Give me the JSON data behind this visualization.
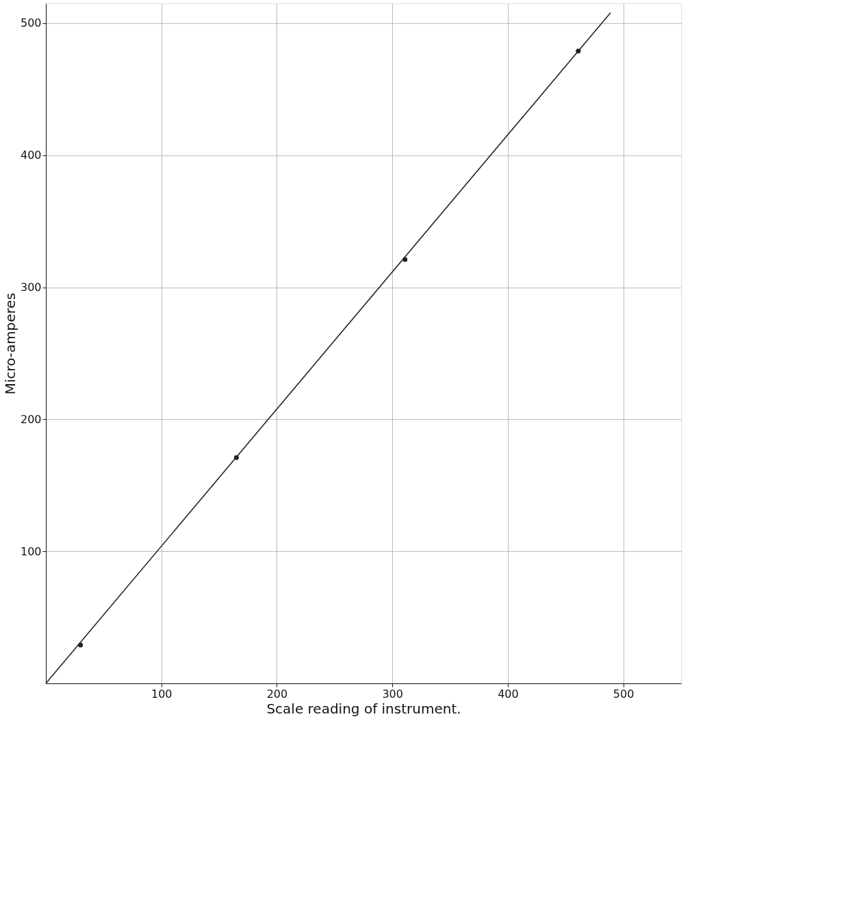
{
  "chart_data": {
    "type": "scatter",
    "xlabel": "Scale reading of instrument.",
    "ylabel": "Micro-amperes",
    "series": [
      {
        "color": "#222222",
        "x": [
          30,
          165,
          311,
          461
        ],
        "values": [
          29,
          171,
          321,
          479
        ],
        "marker": "circle"
      },
      {
        "type": "line",
        "color": "#222222",
        "x": [
          0,
          489
        ],
        "values": [
          0,
          508
        ],
        "marker": "none",
        "line_style": "solid"
      }
    ],
    "xlim": [
      0,
      550
    ],
    "ylim": [
      0,
      515
    ],
    "xticks": [
      100,
      200,
      300,
      400,
      500
    ],
    "yticks": [
      100,
      200,
      300,
      400,
      500
    ],
    "grid": true
  }
}
